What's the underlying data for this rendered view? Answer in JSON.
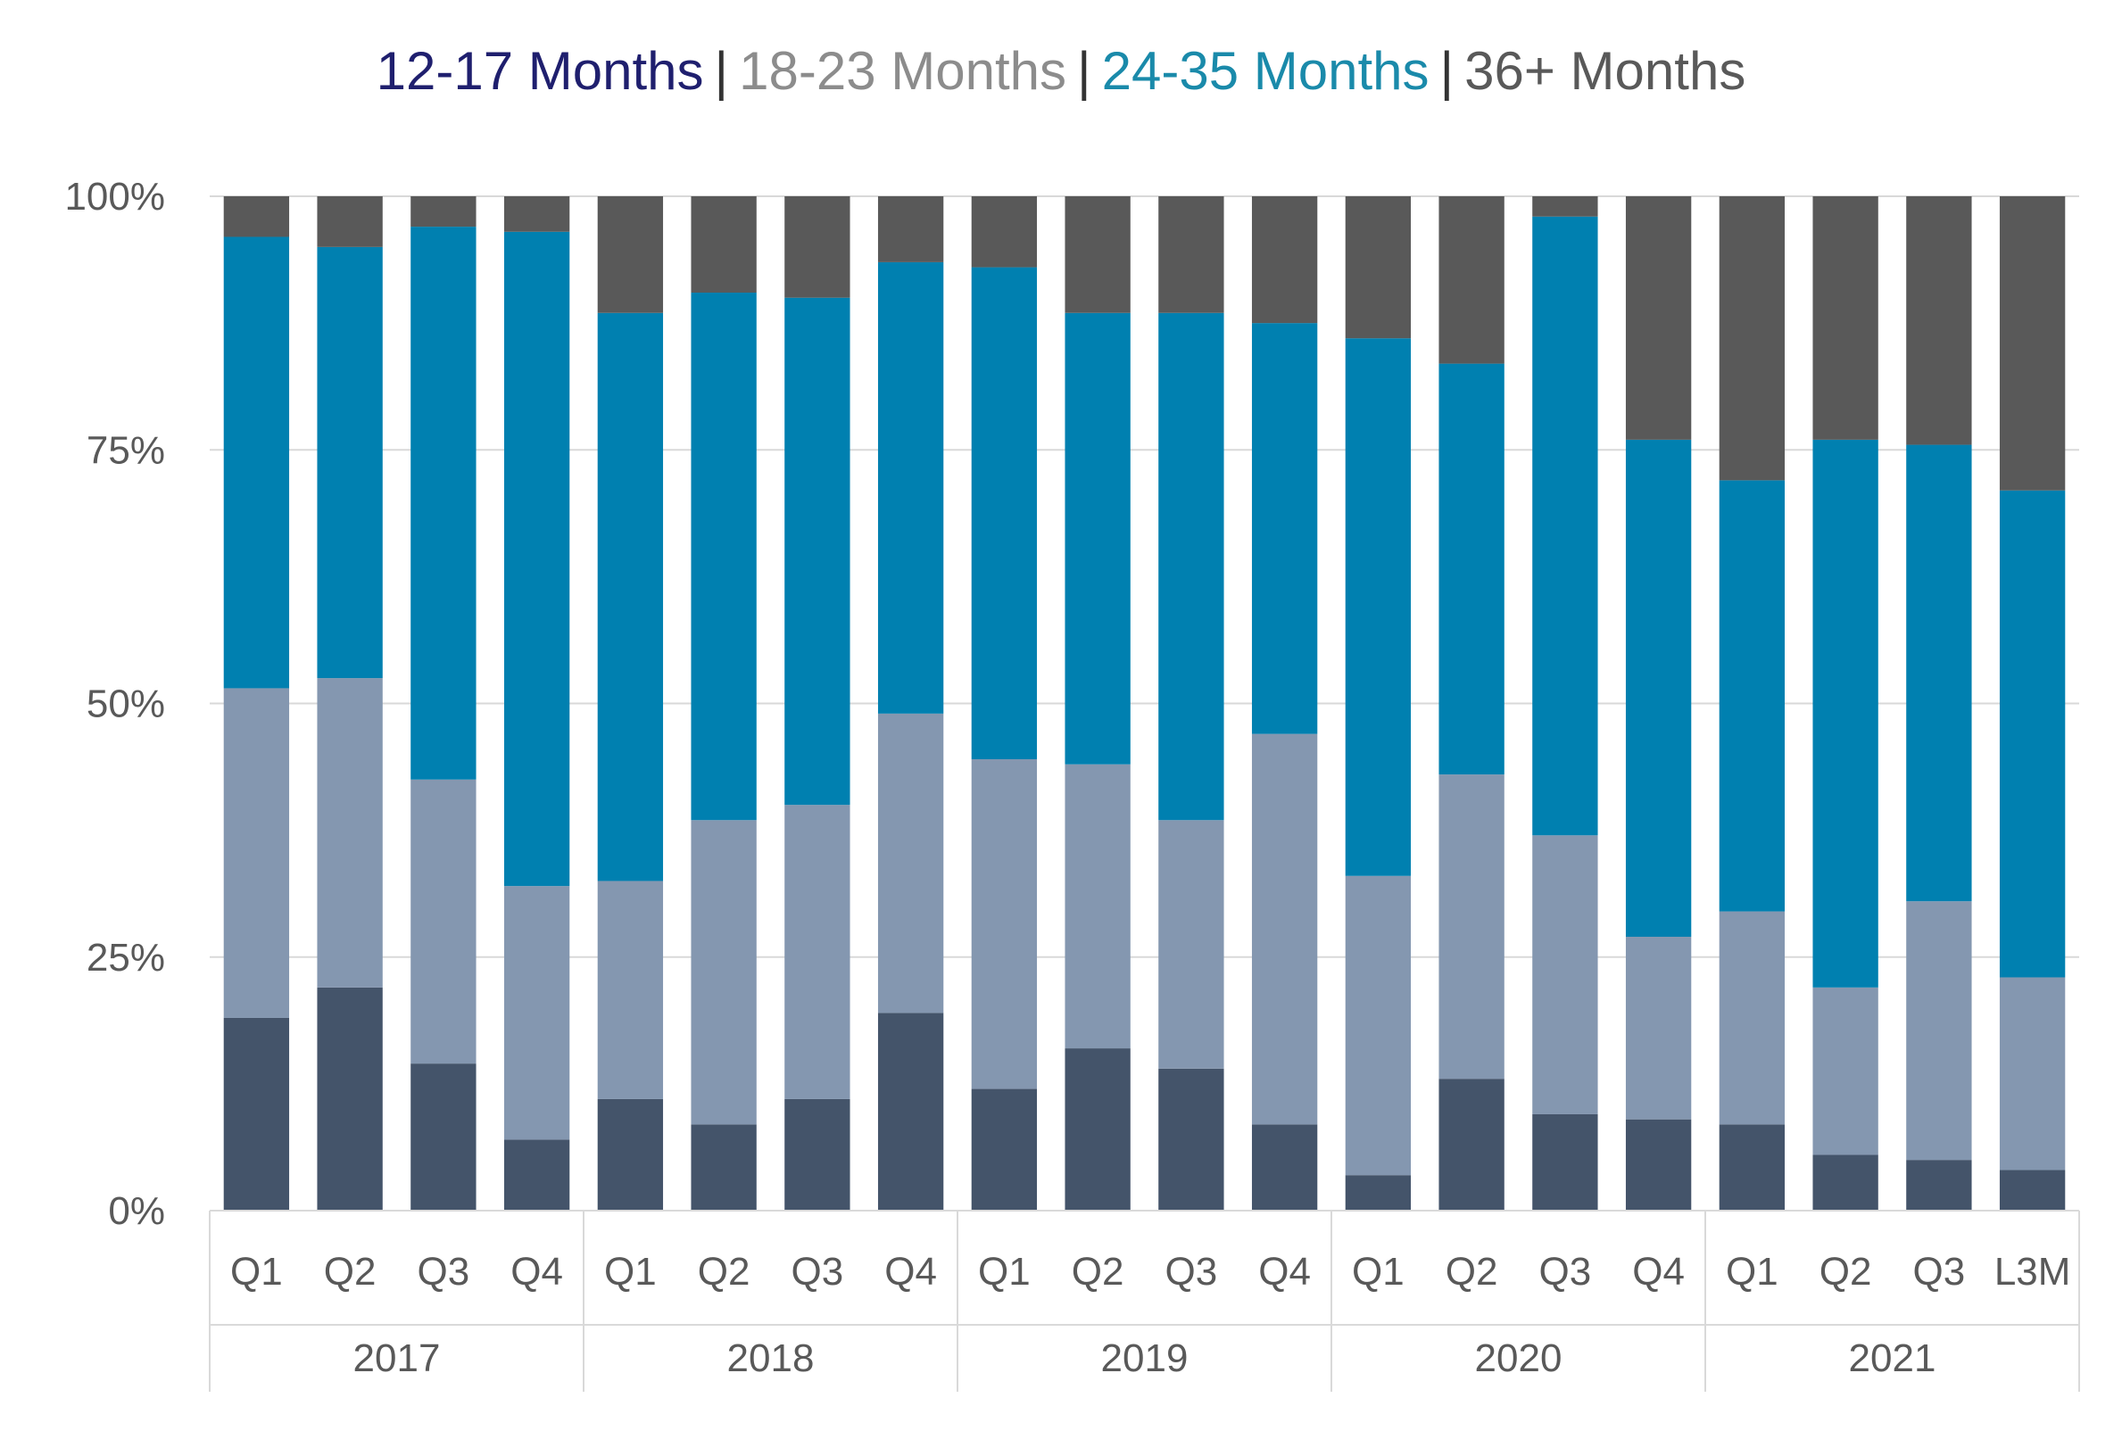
{
  "chart_data": {
    "type": "bar",
    "stacked": true,
    "percent": true,
    "title": "",
    "xlabel": "",
    "ylabel": "",
    "ylim": [
      0,
      100
    ],
    "y_ticks": [
      "0%",
      "25%",
      "50%",
      "75%",
      "100%"
    ],
    "y_tick_values": [
      0,
      25,
      50,
      75,
      100
    ],
    "grid": true,
    "legend_position": "top",
    "categories": [
      "Q1",
      "Q2",
      "Q3",
      "Q4",
      "Q1",
      "Q2",
      "Q3",
      "Q4",
      "Q1",
      "Q2",
      "Q3",
      "Q4",
      "Q1",
      "Q2",
      "Q3",
      "Q4",
      "Q1",
      "Q2",
      "Q3",
      "L3M"
    ],
    "year_groups": [
      {
        "label": "2017",
        "count": 4
      },
      {
        "label": "2018",
        "count": 4
      },
      {
        "label": "2019",
        "count": 4
      },
      {
        "label": "2020",
        "count": 4
      },
      {
        "label": "2021",
        "count": 4
      }
    ],
    "series": [
      {
        "name": "12-17 Months",
        "color": "#44546a",
        "values": [
          19,
          22,
          14.5,
          7,
          11,
          8.5,
          11,
          19.5,
          12,
          16,
          14,
          8.5,
          3.5,
          13,
          9.5,
          9,
          8.5,
          5.5,
          5,
          4
        ]
      },
      {
        "name": "18-23 Months",
        "color": "#8497b0",
        "values": [
          32.5,
          30.5,
          28,
          25,
          21.5,
          30,
          29,
          29.5,
          32.5,
          28,
          24.5,
          38.5,
          29.5,
          30,
          27.5,
          18,
          21,
          16.5,
          25.5,
          19
        ]
      },
      {
        "name": "24-35 Months",
        "color": "#0080b0",
        "values": [
          44.5,
          42.5,
          54.5,
          64.5,
          56,
          52,
          50,
          44.5,
          48.5,
          44.5,
          50,
          40.5,
          53,
          40.5,
          61,
          49,
          42.5,
          54,
          45,
          48
        ]
      },
      {
        "name": "36+ Months",
        "color": "#595959",
        "values": [
          4,
          5,
          3,
          3.5,
          11.5,
          9.5,
          10,
          6.5,
          7,
          11.5,
          11.5,
          12.5,
          14,
          16.5,
          2,
          24,
          28,
          24,
          24.5,
          29
        ]
      }
    ]
  },
  "legend": {
    "items": [
      {
        "label": "12-17 Months",
        "color": "#1f1f6e"
      },
      {
        "label": "18-23 Months",
        "color": "#8c8c8c"
      },
      {
        "label": "24-35 Months",
        "color": "#1a8aaa"
      },
      {
        "label": "36+ Months",
        "color": "#595959"
      }
    ],
    "separator": "|"
  }
}
